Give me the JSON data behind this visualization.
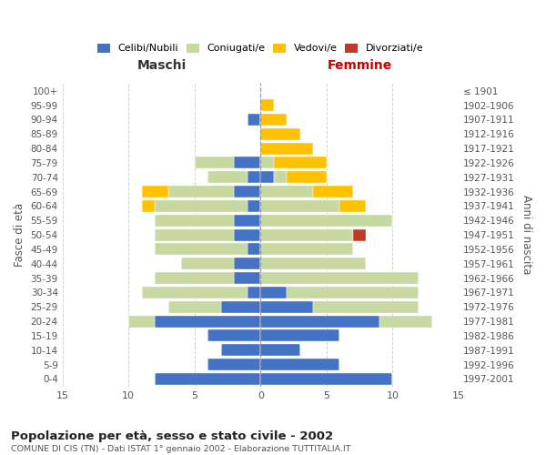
{
  "age_groups": [
    "0-4",
    "5-9",
    "10-14",
    "15-19",
    "20-24",
    "25-29",
    "30-34",
    "35-39",
    "40-44",
    "45-49",
    "50-54",
    "55-59",
    "60-64",
    "65-69",
    "70-74",
    "75-79",
    "80-84",
    "85-89",
    "90-94",
    "95-99",
    "100+"
  ],
  "birth_years": [
    "1997-2001",
    "1992-1996",
    "1987-1991",
    "1982-1986",
    "1977-1981",
    "1972-1976",
    "1967-1971",
    "1962-1966",
    "1957-1961",
    "1952-1956",
    "1947-1951",
    "1942-1946",
    "1937-1941",
    "1932-1936",
    "1927-1931",
    "1922-1926",
    "1917-1921",
    "1912-1916",
    "1907-1911",
    "1902-1906",
    "≤ 1901"
  ],
  "maschi": {
    "celibi": [
      8,
      4,
      3,
      4,
      8,
      3,
      1,
      2,
      2,
      1,
      2,
      2,
      1,
      2,
      1,
      2,
      0,
      0,
      1,
      0,
      0
    ],
    "coniugati": [
      0,
      0,
      0,
      0,
      2,
      4,
      8,
      6,
      4,
      7,
      6,
      6,
      7,
      5,
      3,
      3,
      0,
      0,
      0,
      0,
      0
    ],
    "vedovi": [
      0,
      0,
      0,
      0,
      0,
      0,
      0,
      0,
      0,
      0,
      0,
      0,
      1,
      2,
      0,
      0,
      0,
      0,
      0,
      0,
      0
    ],
    "divorziati": [
      0,
      0,
      0,
      0,
      0,
      0,
      0,
      0,
      0,
      0,
      0,
      0,
      0,
      0,
      0,
      0,
      0,
      0,
      0,
      0,
      0
    ]
  },
  "femmine": {
    "nubili": [
      10,
      6,
      3,
      6,
      9,
      4,
      2,
      0,
      0,
      0,
      0,
      0,
      0,
      0,
      1,
      0,
      0,
      0,
      0,
      0,
      0
    ],
    "coniugate": [
      0,
      0,
      0,
      0,
      4,
      8,
      10,
      12,
      8,
      7,
      7,
      10,
      6,
      4,
      1,
      1,
      0,
      0,
      0,
      0,
      0
    ],
    "vedove": [
      0,
      0,
      0,
      0,
      0,
      0,
      0,
      0,
      0,
      0,
      0,
      0,
      2,
      3,
      3,
      4,
      4,
      3,
      2,
      1,
      0
    ],
    "divorziate": [
      0,
      0,
      0,
      0,
      0,
      0,
      0,
      0,
      0,
      0,
      1,
      0,
      0,
      0,
      0,
      0,
      0,
      0,
      0,
      0,
      0
    ]
  },
  "colors": {
    "celibi_nubili": "#4472c4",
    "coniugati": "#c5d9a0",
    "vedovi": "#ffc000",
    "divorziati": "#c0392b"
  },
  "title": "Popolazione per età, sesso e stato civile - 2002",
  "subtitle": "COMUNE DI CIS (TN) - Dati ISTAT 1° gennaio 2002 - Elaborazione TUTTITALIA.IT",
  "xlabel_left": "Maschi",
  "xlabel_right": "Femmine",
  "ylabel_left": "Fasce di età",
  "ylabel_right": "Anni di nascita",
  "xlim": 15,
  "background_color": "#ffffff",
  "grid_color": "#cccccc"
}
